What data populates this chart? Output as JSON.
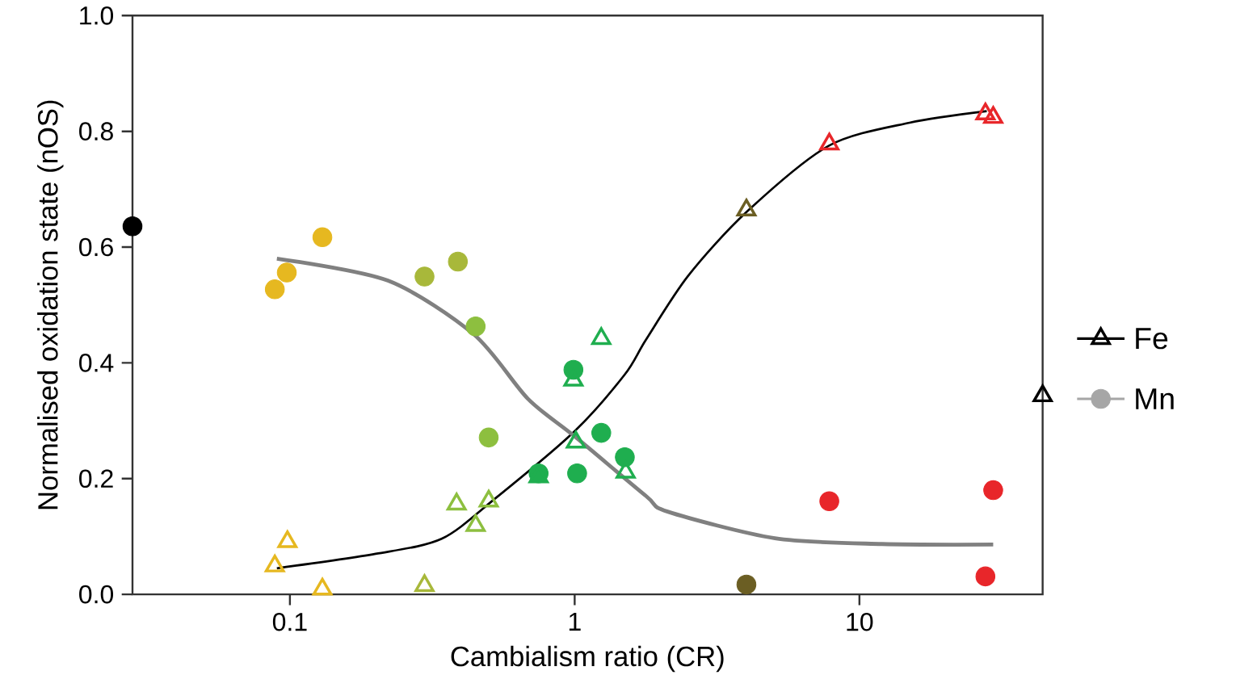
{
  "chart_data": {
    "type": "scatter",
    "xlabel": "Cambialism ratio (CR)",
    "ylabel": "Normalised oxidation state (nOS)",
    "log": "x",
    "xlim": [
      0.028,
      44
    ],
    "xticks": [
      0.1,
      1,
      10
    ],
    "ylim": [
      0,
      1
    ],
    "yticks": [
      {
        "value": 0,
        "label": "0.0"
      },
      {
        "value": 0.2,
        "label": "0.2"
      },
      {
        "value": 0.4,
        "label": "0.4"
      },
      {
        "value": 0.6,
        "label": "0.6"
      },
      {
        "value": 0.8,
        "label": "0.8"
      },
      {
        "value": 1,
        "label": "1.0"
      }
    ],
    "legend": "right",
    "series": [
      {
        "name": "Fe",
        "marker": "triangle",
        "color": "#000000",
        "x": [
          0.0885,
          0.098,
          0.13,
          0.297,
          0.385,
          0.449,
          0.499,
          0.747,
          0.99,
          1.01,
          1.24,
          1.51,
          4.01,
          7.84,
          27.7,
          29.5,
          44
        ],
        "values": [
          0.049,
          0.091,
          0.009,
          0.015,
          0.156,
          0.119,
          0.161,
          0.203,
          0.37,
          0.263,
          0.442,
          0.211,
          0.664,
          0.778,
          0.83,
          0.824,
          0.343
        ],
        "colors": [
          "#e6b820",
          "#e6b820",
          "#e6b820",
          "#a8b83a",
          "#8dbf3f",
          "#8dbf3f",
          "#8dbf3f",
          "#1fae4f",
          "#1fae4f",
          "#1fae4f",
          "#1fae4f",
          "#1fae4f",
          "#6b5e23",
          "#e8262a",
          "#e8262a",
          "#e8262a",
          "#000000"
        ]
      },
      {
        "name": "Mn",
        "marker": "circle",
        "color": "#a6a6a6",
        "x": [
          0.028,
          0.0885,
          0.0975,
          0.13,
          0.297,
          0.389,
          0.449,
          0.499,
          0.747,
          0.99,
          1.02,
          1.24,
          1.5,
          4.01,
          7.84,
          27.7,
          29.5
        ],
        "values": [
          0.636,
          0.527,
          0.556,
          0.617,
          0.549,
          0.575,
          0.463,
          0.271,
          0.209,
          0.388,
          0.209,
          0.279,
          0.237,
          0.017,
          0.161,
          0.031,
          0.18
        ],
        "colors": [
          "#000000",
          "#e6b820",
          "#e6b820",
          "#e6b820",
          "#a8b83a",
          "#a8b83a",
          "#8dbf3f",
          "#8dbf3f",
          "#1fae4f",
          "#1fae4f",
          "#1fae4f",
          "#1fae4f",
          "#1fae4f",
          "#6b5e23",
          "#e8262a",
          "#e8262a",
          "#e8262a"
        ]
      },
      {
        "type": "line",
        "marker": "none",
        "color": "#000000",
        "x": [
          0.09,
          0.2,
          0.341,
          0.527,
          1.0,
          1.5,
          1.78,
          2.5,
          4.0,
          7.8,
          15,
          28
        ],
        "values": [
          0.045,
          0.07,
          0.096,
          0.166,
          0.282,
          0.38,
          0.44,
          0.55,
          0.66,
          0.775,
          0.815,
          0.835
        ]
      },
      {
        "type": "line",
        "marker": "none",
        "color": "#808080",
        "x": [
          0.09,
          0.221,
          0.443,
          0.685,
          1.0,
          1.78,
          2.12,
          5.05,
          12.0,
          29.5
        ],
        "values": [
          0.58,
          0.542,
          0.449,
          0.338,
          0.273,
          0.17,
          0.143,
          0.097,
          0.087,
          0.086
        ]
      }
    ]
  }
}
